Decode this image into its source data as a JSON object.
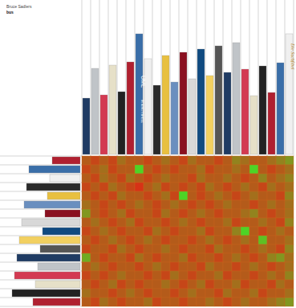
{
  "chart_data": {
    "type": "heatmap",
    "title": "Bruce Sadlers",
    "subtitle": "bus",
    "annotations": [
      "UML",
      "IN A NUTSHELL",
      "Die Suchfibel"
    ],
    "x": [
      null,
      null,
      null,
      null,
      null,
      null,
      null,
      null,
      null,
      null,
      null,
      null,
      null,
      null,
      null,
      null,
      null,
      null,
      null,
      null,
      null,
      null,
      null,
      null
    ],
    "y": [
      null,
      null,
      null,
      null,
      null,
      null,
      null,
      null,
      null,
      null,
      null,
      null,
      null,
      null,
      null,
      null,
      null
    ],
    "zlim": [
      0,
      1
    ],
    "tick_labels": false,
    "cells": [
      [
        0.3,
        0.2,
        0.3,
        0.2,
        0.4,
        0.3,
        0.3,
        0.2,
        0.3,
        0.4,
        0.3,
        0.2,
        0.4,
        0.3,
        0.3,
        0.2,
        0.3,
        0.5,
        0.4,
        0.3,
        0.3,
        0.4,
        0.5,
        0.6
      ],
      [
        0.2,
        0.3,
        0.4,
        0.2,
        0.3,
        0.3,
        0.9,
        0.3,
        0.2,
        0.3,
        0.2,
        0.3,
        0.3,
        0.4,
        0.2,
        0.3,
        0.3,
        0.4,
        0.3,
        0.9,
        0.3,
        0.2,
        0.3,
        0.4
      ],
      [
        0.3,
        0.2,
        0.4,
        0.3,
        0.2,
        0.4,
        0.3,
        0.2,
        0.3,
        0.4,
        0.3,
        0.3,
        0.2,
        0.4,
        0.3,
        0.3,
        0.4,
        0.3,
        0.2,
        0.3,
        0.5,
        0.3,
        0.4,
        0.5
      ],
      [
        0.2,
        0.3,
        0.2,
        0.4,
        0.3,
        0.2,
        0.1,
        0.3,
        0.4,
        0.2,
        0.3,
        0.2,
        0.3,
        0.2,
        0.4,
        0.3,
        0.2,
        0.3,
        0.4,
        0.3,
        0.2,
        0.4,
        0.3,
        0.4
      ],
      [
        0.3,
        0.2,
        0.3,
        0.2,
        0.4,
        0.3,
        0.3,
        0.2,
        0.3,
        0.4,
        0.2,
        0.9,
        0.3,
        0.2,
        0.3,
        0.4,
        0.3,
        0.2,
        0.3,
        0.4,
        0.3,
        0.3,
        0.2,
        0.5
      ],
      [
        0.4,
        0.3,
        0.2,
        0.3,
        0.2,
        0.3,
        0.4,
        0.3,
        0.2,
        0.3,
        0.4,
        0.3,
        0.2,
        0.3,
        0.2,
        0.3,
        0.4,
        0.3,
        0.3,
        0.2,
        0.3,
        0.4,
        0.3,
        0.4
      ],
      [
        0.6,
        0.3,
        0.2,
        0.3,
        0.4,
        0.2,
        0.3,
        0.3,
        0.2,
        0.4,
        0.3,
        0.2,
        0.3,
        0.4,
        0.3,
        0.2,
        0.3,
        0.3,
        0.4,
        0.5,
        0.3,
        0.2,
        0.3,
        0.4
      ],
      [
        0.3,
        0.4,
        0.3,
        0.2,
        0.3,
        0.4,
        0.2,
        0.3,
        0.3,
        0.2,
        0.3,
        0.4,
        0.3,
        0.2,
        0.3,
        0.3,
        0.4,
        0.2,
        0.3,
        0.3,
        0.4,
        0.3,
        0.2,
        0.5
      ],
      [
        0.2,
        0.3,
        0.4,
        0.3,
        0.2,
        0.3,
        0.3,
        0.2,
        0.4,
        0.3,
        0.2,
        0.3,
        0.3,
        0.4,
        0.2,
        0.3,
        0.3,
        0.5,
        0.9,
        0.3,
        0.2,
        0.3,
        0.4,
        0.3
      ],
      [
        0.3,
        0.2,
        0.3,
        0.4,
        0.3,
        0.2,
        0.3,
        0.4,
        0.3,
        0.2,
        0.3,
        0.3,
        0.2,
        0.3,
        0.4,
        0.3,
        0.2,
        0.3,
        0.4,
        0.3,
        0.8,
        0.3,
        0.3,
        0.4
      ],
      [
        0.2,
        0.3,
        0.3,
        0.2,
        0.4,
        0.3,
        0.2,
        0.3,
        0.3,
        0.4,
        0.3,
        0.2,
        0.3,
        0.3,
        0.2,
        0.4,
        0.3,
        0.3,
        0.2,
        0.3,
        0.4,
        0.3,
        0.2,
        0.5
      ],
      [
        0.7,
        0.3,
        0.2,
        0.3,
        0.3,
        0.2,
        0.4,
        0.3,
        0.2,
        0.3,
        0.3,
        0.4,
        0.2,
        0.3,
        0.3,
        0.2,
        0.3,
        0.4,
        0.3,
        0.2,
        0.3,
        0.5,
        0.6,
        0.4
      ],
      [
        0.3,
        0.4,
        0.3,
        0.2,
        0.3,
        0.3,
        0.2,
        0.3,
        0.4,
        0.3,
        0.2,
        0.3,
        0.3,
        0.2,
        0.4,
        0.3,
        0.3,
        0.2,
        0.3,
        0.4,
        0.3,
        0.2,
        0.3,
        0.4
      ],
      [
        0.2,
        0.3,
        0.2,
        0.3,
        0.4,
        0.3,
        0.3,
        0.2,
        0.3,
        0.2,
        0.4,
        0.3,
        0.2,
        0.3,
        0.3,
        0.4,
        0.2,
        0.3,
        0.3,
        0.2,
        0.3,
        0.4,
        0.3,
        0.5
      ],
      [
        0.3,
        0.2,
        0.3,
        0.4,
        0.2,
        0.3,
        0.2,
        0.3,
        0.3,
        0.4,
        0.3,
        0.2,
        0.3,
        0.4,
        0.2,
        0.3,
        0.3,
        0.4,
        0.2,
        0.3,
        0.3,
        0.2,
        0.4,
        0.3
      ],
      [
        0.4,
        0.3,
        0.3,
        0.2,
        0.3,
        0.4,
        0.3,
        0.2,
        0.3,
        0.3,
        0.2,
        0.3,
        0.4,
        0.3,
        0.3,
        0.2,
        0.4,
        0.3,
        0.3,
        0.4,
        0.2,
        0.3,
        0.3,
        0.4
      ],
      [
        0.3,
        0.2,
        0.4,
        0.3,
        0.2,
        0.3,
        0.3,
        0.4,
        0.2,
        0.3,
        0.3,
        0.2,
        0.3,
        0.3,
        0.4,
        0.3,
        0.2,
        0.3,
        0.4,
        0.3,
        0.3,
        0.4,
        0.5,
        0.6
      ]
    ]
  }
}
